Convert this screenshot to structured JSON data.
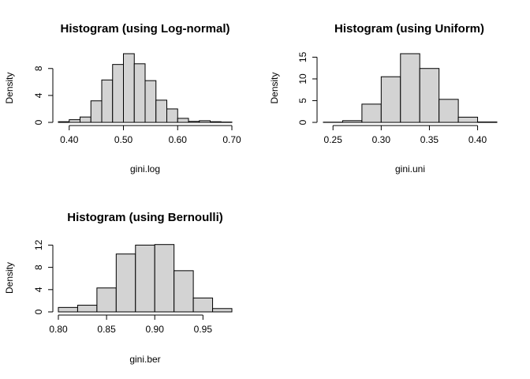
{
  "chart_data": [
    {
      "type": "bar",
      "title": "Histogram (using Log-normal)",
      "xlabel": "gini.log",
      "ylabel": "Density",
      "xlim": [
        0.38,
        0.7
      ],
      "ylim": [
        0,
        10.2
      ],
      "xticks": [
        0.4,
        0.5,
        0.6,
        0.7
      ],
      "xtick_labels": [
        "0.40",
        "0.50",
        "0.60",
        "0.70"
      ],
      "yticks": [
        0,
        4,
        8
      ],
      "ytick_labels": [
        "0",
        "4",
        "8"
      ],
      "grid": false,
      "bins": [
        {
          "x0": 0.38,
          "x1": 0.4,
          "value": 0.1
        },
        {
          "x0": 0.4,
          "x1": 0.42,
          "value": 0.4
        },
        {
          "x0": 0.42,
          "x1": 0.44,
          "value": 0.8
        },
        {
          "x0": 0.44,
          "x1": 0.46,
          "value": 3.2
        },
        {
          "x0": 0.46,
          "x1": 0.48,
          "value": 6.3
        },
        {
          "x0": 0.48,
          "x1": 0.5,
          "value": 8.6
        },
        {
          "x0": 0.5,
          "x1": 0.52,
          "value": 10.2
        },
        {
          "x0": 0.52,
          "x1": 0.54,
          "value": 8.7
        },
        {
          "x0": 0.54,
          "x1": 0.56,
          "value": 6.2
        },
        {
          "x0": 0.56,
          "x1": 0.58,
          "value": 3.3
        },
        {
          "x0": 0.58,
          "x1": 0.6,
          "value": 2.0
        },
        {
          "x0": 0.6,
          "x1": 0.62,
          "value": 0.6
        },
        {
          "x0": 0.62,
          "x1": 0.64,
          "value": 0.15
        },
        {
          "x0": 0.64,
          "x1": 0.66,
          "value": 0.25
        },
        {
          "x0": 0.66,
          "x1": 0.68,
          "value": 0.1
        },
        {
          "x0": 0.68,
          "x1": 0.7,
          "value": 0.05
        }
      ]
    },
    {
      "type": "bar",
      "title": "Histogram (using Uniform)",
      "xlabel": "gini.uni",
      "ylabel": "Density",
      "xlim": [
        0.24,
        0.42
      ],
      "ylim": [
        0,
        15.8
      ],
      "xticks": [
        0.25,
        0.3,
        0.35,
        0.4
      ],
      "xtick_labels": [
        "0.25",
        "0.30",
        "0.35",
        "0.40"
      ],
      "yticks": [
        0,
        5,
        10,
        15
      ],
      "ytick_labels": [
        "0",
        "5",
        "10",
        "15"
      ],
      "grid": false,
      "bins": [
        {
          "x0": 0.24,
          "x1": 0.26,
          "value": 0.05
        },
        {
          "x0": 0.26,
          "x1": 0.28,
          "value": 0.4
        },
        {
          "x0": 0.28,
          "x1": 0.3,
          "value": 4.2
        },
        {
          "x0": 0.3,
          "x1": 0.32,
          "value": 10.5
        },
        {
          "x0": 0.32,
          "x1": 0.34,
          "value": 15.8
        },
        {
          "x0": 0.34,
          "x1": 0.36,
          "value": 12.4
        },
        {
          "x0": 0.36,
          "x1": 0.38,
          "value": 5.3
        },
        {
          "x0": 0.38,
          "x1": 0.4,
          "value": 1.2
        },
        {
          "x0": 0.4,
          "x1": 0.42,
          "value": 0.1
        }
      ]
    },
    {
      "type": "bar",
      "title": "Histogram (using Bernoulli)",
      "xlabel": "gini.ber",
      "ylabel": "Density",
      "xlim": [
        0.8,
        0.98
      ],
      "ylim": [
        0,
        12.2
      ],
      "xticks": [
        0.8,
        0.85,
        0.9,
        0.95
      ],
      "xtick_labels": [
        "0.80",
        "0.85",
        "0.90",
        "0.95"
      ],
      "yticks": [
        0,
        4,
        8,
        12
      ],
      "ytick_labels": [
        "0",
        "4",
        "8",
        "12"
      ],
      "grid": false,
      "bins": [
        {
          "x0": 0.8,
          "x1": 0.82,
          "value": 0.8
        },
        {
          "x0": 0.82,
          "x1": 0.84,
          "value": 1.2
        },
        {
          "x0": 0.84,
          "x1": 0.86,
          "value": 4.3
        },
        {
          "x0": 0.86,
          "x1": 0.88,
          "value": 10.4
        },
        {
          "x0": 0.88,
          "x1": 0.9,
          "value": 12.0
        },
        {
          "x0": 0.9,
          "x1": 0.92,
          "value": 12.1
        },
        {
          "x0": 0.92,
          "x1": 0.94,
          "value": 7.4
        },
        {
          "x0": 0.94,
          "x1": 0.96,
          "value": 2.5
        },
        {
          "x0": 0.96,
          "x1": 0.98,
          "value": 0.6
        }
      ]
    }
  ]
}
